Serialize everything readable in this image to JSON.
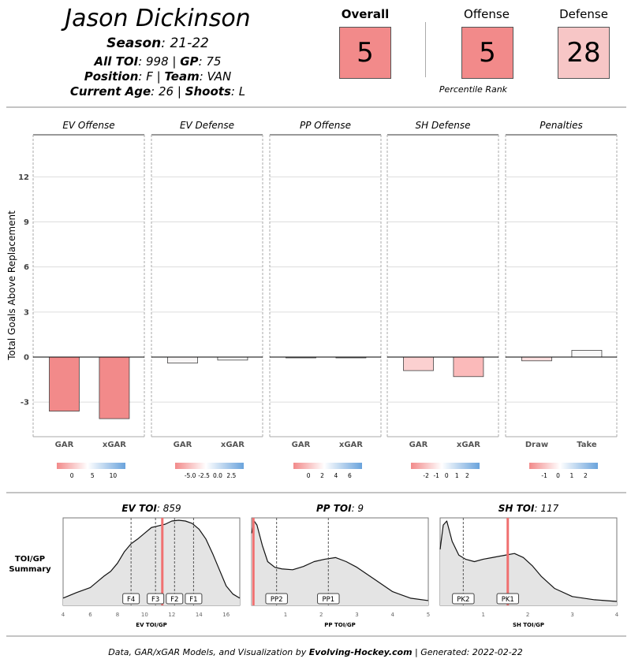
{
  "player": {
    "name": "Jason Dickinson",
    "season_label": "Season",
    "season": "21-22",
    "toi_label": "All TOI",
    "toi": "998",
    "gp_label": "GP",
    "gp": "75",
    "position_label": "Position",
    "position": "F",
    "team_label": "Team",
    "team": "VAN",
    "age_label": "Current Age",
    "age": "26",
    "shoots_label": "Shoots",
    "shoots": "L"
  },
  "ranks": {
    "overall_label": "Overall",
    "overall": "5",
    "overall_color": "#f28a8a",
    "offense_label": "Offense",
    "offense": "5",
    "offense_color": "#f28a8a",
    "defense_label": "Defense",
    "defense": "28",
    "defense_color": "#f7c6c6",
    "caption": "Percentile Rank"
  },
  "chart_data": [
    {
      "type": "bar",
      "ylabel": "Total Goals Above Replacement",
      "ylim": [
        -5.3,
        14.8
      ],
      "yticks": [
        12,
        9,
        6,
        3,
        0,
        -3
      ],
      "grid": true,
      "panels": [
        {
          "title": "EV Offense",
          "categories": [
            "GAR",
            "xGAR"
          ],
          "values": [
            -3.6,
            -4.1
          ],
          "colors": [
            "#f28a8a",
            "#f28a8a"
          ],
          "legend_ticks": [
            "0",
            "5",
            "10"
          ]
        },
        {
          "title": "EV Defense",
          "categories": [
            "GAR",
            "xGAR"
          ],
          "values": [
            -0.4,
            -0.2
          ],
          "colors": [
            "#f8f6f6",
            "#f8f8f8"
          ],
          "legend_ticks": [
            "-5.0",
            "-2.5",
            "0.0",
            "2.5"
          ]
        },
        {
          "title": "PP Offense",
          "categories": [
            "GAR",
            "xGAR"
          ],
          "values": [
            -0.05,
            -0.05
          ],
          "colors": [
            "#f8f8f8",
            "#f8f8f8"
          ],
          "legend_ticks": [
            "0",
            "2",
            "4",
            "6"
          ]
        },
        {
          "title": "SH Defense",
          "categories": [
            "GAR",
            "xGAR"
          ],
          "values": [
            -0.9,
            -1.3
          ],
          "colors": [
            "#fbd0d0",
            "#fbbaba"
          ],
          "legend_ticks": [
            "-2",
            "-1",
            "0",
            "1",
            "2"
          ]
        },
        {
          "title": "Penalties",
          "categories": [
            "Draw",
            "Take"
          ],
          "values": [
            -0.25,
            0.45
          ],
          "colors": [
            "#fde0e0",
            "#f8f8f8"
          ],
          "legend_ticks": [
            "-1",
            "0",
            "1",
            "2"
          ]
        }
      ]
    },
    {
      "type": "area",
      "row_label": "TOI/GP Summary",
      "player_color": "#f07070",
      "panels": [
        {
          "title_label": "EV TOI",
          "title_value": "859",
          "xlabel": "EV TOI/GP",
          "xlim": [
            4,
            17
          ],
          "xticks": [
            4,
            6,
            8,
            10,
            12,
            14,
            16
          ],
          "x": [
            4,
            5,
            6,
            7,
            7.5,
            8,
            8.5,
            9,
            9.5,
            10,
            10.5,
            11,
            11.5,
            12,
            12.5,
            13,
            13.5,
            14,
            14.5,
            15,
            15.5,
            16,
            16.5,
            17
          ],
          "density": [
            0.05,
            0.12,
            0.18,
            0.32,
            0.38,
            0.48,
            0.62,
            0.72,
            0.78,
            0.85,
            0.92,
            0.94,
            0.96,
            1.0,
            1.01,
            1.0,
            0.97,
            0.9,
            0.78,
            0.6,
            0.4,
            0.2,
            0.1,
            0.05
          ],
          "player_value": 11.3,
          "markers": [
            {
              "label": "F4",
              "x": 9.0
            },
            {
              "label": "F3",
              "x": 10.8
            },
            {
              "label": "F2",
              "x": 12.2
            },
            {
              "label": "F1",
              "x": 13.6
            }
          ]
        },
        {
          "title_label": "PP TOI",
          "title_value": "9",
          "xlabel": "PP TOI/GP",
          "xlim": [
            0.05,
            5
          ],
          "xticks": [
            1,
            2,
            3,
            4,
            5
          ],
          "x": [
            0.05,
            0.12,
            0.2,
            0.35,
            0.5,
            0.7,
            0.9,
            1.2,
            1.5,
            1.8,
            2.1,
            2.4,
            2.7,
            3,
            3.5,
            4,
            4.5,
            5
          ],
          "density": [
            0.85,
            1.0,
            0.95,
            0.7,
            0.5,
            0.43,
            0.41,
            0.4,
            0.44,
            0.5,
            0.53,
            0.55,
            0.5,
            0.43,
            0.28,
            0.13,
            0.05,
            0.02
          ],
          "player_value": 0.1,
          "markers": [
            {
              "label": "PP2",
              "x": 0.75
            },
            {
              "label": "PP1",
              "x": 2.2
            }
          ]
        },
        {
          "title_label": "SH TOI",
          "title_value": "117",
          "xlabel": "SH TOI/GP",
          "xlim": [
            0.03,
            4
          ],
          "xticks": [
            1,
            2,
            3,
            4
          ],
          "x": [
            0.03,
            0.1,
            0.18,
            0.3,
            0.45,
            0.6,
            0.8,
            1.0,
            1.2,
            1.5,
            1.7,
            1.9,
            2.1,
            2.3,
            2.6,
            3,
            3.5,
            4
          ],
          "density": [
            0.65,
            0.95,
            1.0,
            0.75,
            0.58,
            0.53,
            0.5,
            0.53,
            0.55,
            0.58,
            0.6,
            0.55,
            0.45,
            0.32,
            0.17,
            0.07,
            0.03,
            0.01
          ],
          "player_value": 1.55,
          "markers": [
            {
              "label": "PK2",
              "x": 0.55
            },
            {
              "label": "PK1",
              "x": 1.55
            }
          ]
        }
      ]
    }
  ],
  "footer": {
    "prefix": "Data, GAR/xGAR Models, and Visualization by ",
    "brand": "Evolving-Hockey.com",
    "suffix": " | Generated: 2022-02-22"
  }
}
